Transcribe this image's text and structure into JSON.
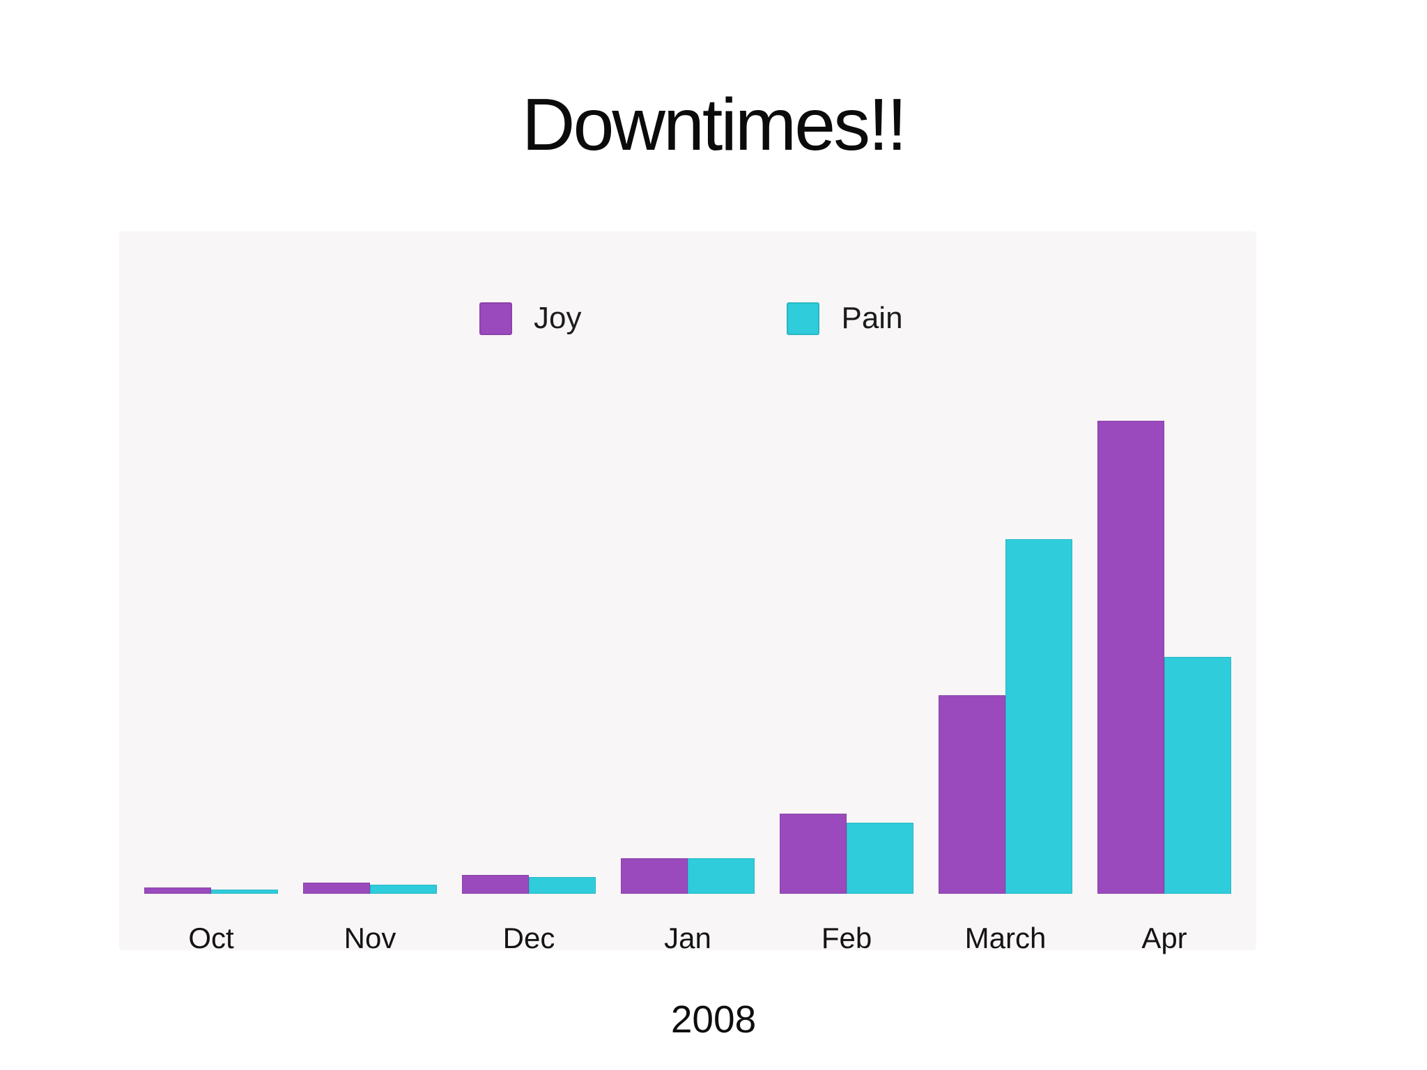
{
  "slide": {
    "title": "Downtimes!!",
    "caption": "2008"
  },
  "colors": {
    "joy": "#9a4abc",
    "pain": "#2fccdb",
    "panel_background": "#f8f6f7",
    "page_background": "#ffffff",
    "text": "#0b0b0b"
  },
  "chart_data": {
    "type": "bar",
    "title": "Downtimes!!",
    "categories": [
      "Oct",
      "Nov",
      "Dec",
      "Jan",
      "Feb",
      "March",
      "Apr"
    ],
    "series": [
      {
        "name": "Joy",
        "color": "#9a4abc",
        "values": [
          1.3,
          2.4,
          4.0,
          7.5,
          17,
          42,
          100
        ]
      },
      {
        "name": "Pain",
        "color": "#2fccdb",
        "values": [
          0.9,
          1.9,
          3.5,
          7.5,
          15,
          75,
          50
        ]
      }
    ],
    "xlabel": "",
    "ylabel": "",
    "ylim": [
      0,
      140
    ],
    "grid": false,
    "legend_position": "top-center",
    "annotation": "2008"
  }
}
